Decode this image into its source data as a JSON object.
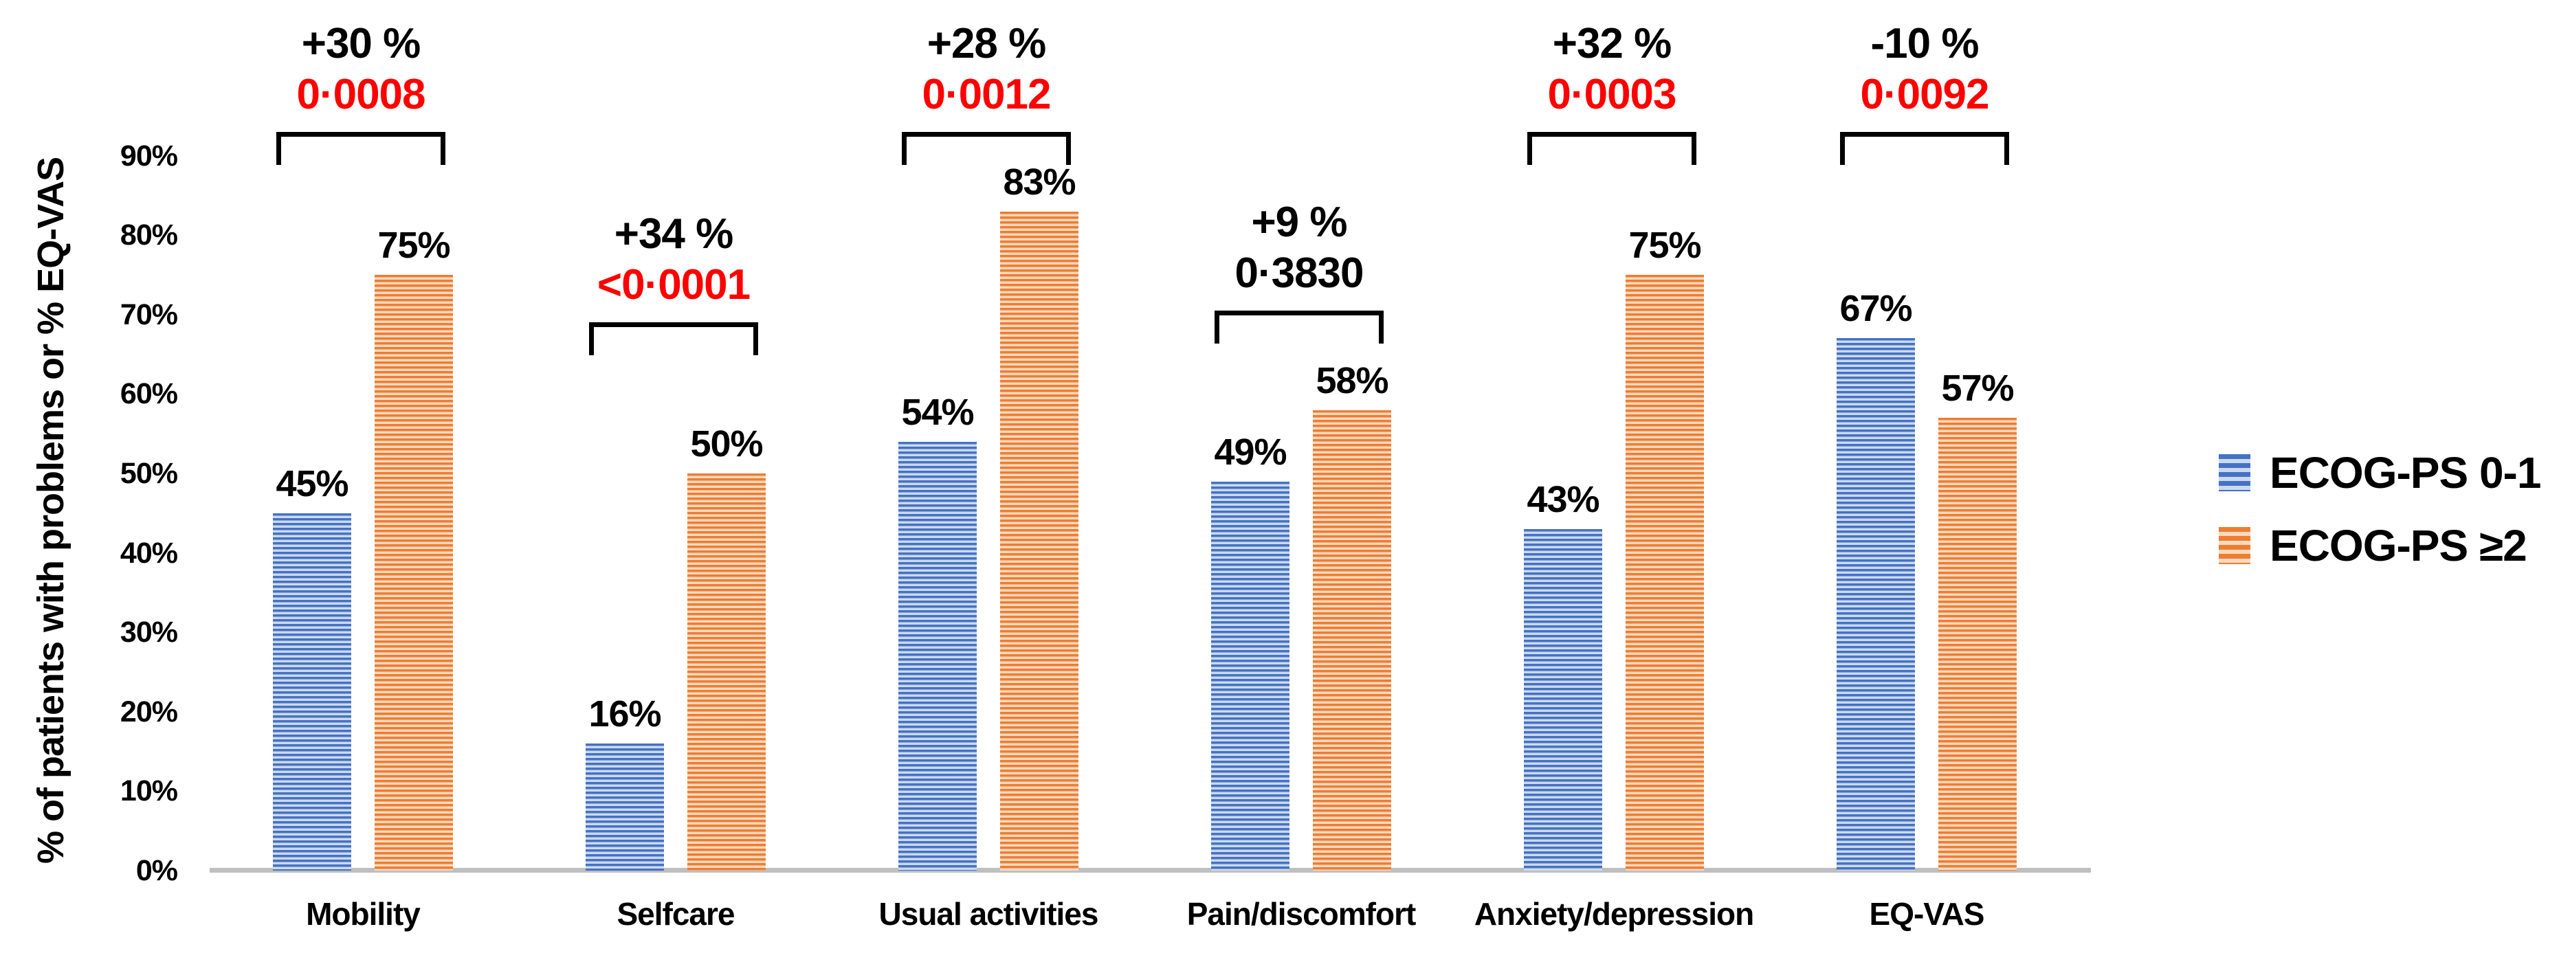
{
  "figure": {
    "background": "#FFFFFF"
  },
  "chart_data": {
    "type": "bar",
    "title": "",
    "xlabel": "",
    "ylabel": "% of patients with problems or % EQ-VAS",
    "ylim": [
      0,
      90
    ],
    "yticks": [
      "0%",
      "10%",
      "20%",
      "30%",
      "40%",
      "50%",
      "60%",
      "70%",
      "80%",
      "90%"
    ],
    "grid": false,
    "axis_line_color": "#BFBFBF",
    "categories": [
      "Mobility",
      "Selfcare",
      "Usual activities",
      "Pain/discomfort",
      "Anxiety/depression",
      "EQ-VAS"
    ],
    "series": [
      {
        "name": "ECOG-PS 0-1",
        "color": "#4472C4",
        "color_light": "#CCD9EE",
        "values": [
          45,
          16,
          54,
          49,
          43,
          67
        ],
        "value_labels": [
          "45%",
          "16%",
          "54%",
          "49%",
          "43%",
          "67%"
        ]
      },
      {
        "name": "ECOG-PS ≥2",
        "color": "#ED7D31",
        "color_light": "#FBD9C0",
        "values": [
          75,
          50,
          83,
          58,
          75,
          57
        ],
        "value_labels": [
          "75%",
          "50%",
          "83%",
          "58%",
          "75%",
          "57%"
        ]
      }
    ],
    "annotations": [
      {
        "category": "Mobility",
        "diff": "+30 %",
        "diff_color": "#000000",
        "p_value": "0·0008",
        "p_color": "#FF0000",
        "bracket_top_pct": 93
      },
      {
        "category": "Selfcare",
        "diff": "+34 %",
        "diff_color": "#000000",
        "p_value": "<0·0001",
        "p_color": "#FF0000",
        "bracket_top_pct": 69
      },
      {
        "category": "Usual activities",
        "diff": "+28 %",
        "diff_color": "#000000",
        "p_value": "0·0012",
        "p_color": "#FF0000",
        "bracket_top_pct": 93
      },
      {
        "category": "Pain/discomfort",
        "diff": "+9 %",
        "diff_color": "#000000",
        "p_value": "0·3830",
        "p_color": "#000000",
        "bracket_top_pct": 70.5
      },
      {
        "category": "Anxiety/depression",
        "diff": "+32 %",
        "diff_color": "#000000",
        "p_value": "0·0003",
        "p_color": "#FF0000",
        "bracket_top_pct": 93
      },
      {
        "category": "EQ-VAS",
        "diff": "-10 %",
        "diff_color": "#000000",
        "p_value": "0·0092",
        "p_color": "#FF0000",
        "bracket_top_pct": 93
      }
    ],
    "legend": {
      "position": "right",
      "items": [
        "ECOG-PS 0-1",
        "ECOG-PS ≥2"
      ]
    }
  }
}
